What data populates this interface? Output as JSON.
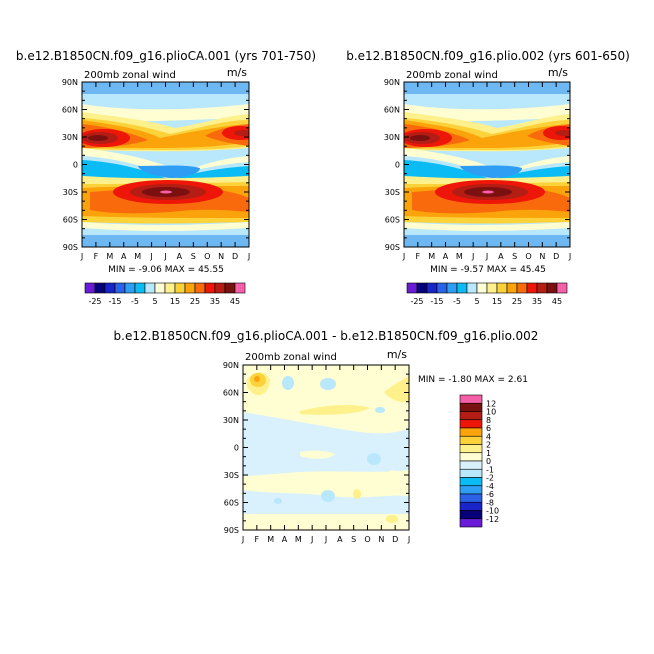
{
  "chart_data": [
    {
      "type": "heatmap",
      "title": "b.e12.B1850CN.f09_g16.plioCA.001 (yrs 701-750)",
      "subtitle_left": "200mb zonal wind",
      "subtitle_right": "m/s",
      "x_ticks": [
        "J",
        "F",
        "M",
        "A",
        "M",
        "J",
        "J",
        "A",
        "S",
        "O",
        "N",
        "D",
        "J"
      ],
      "y_ticks": [
        "90N",
        "60N",
        "30N",
        "0",
        "30S",
        "60S",
        "90S"
      ],
      "stats_text": "MIN = -9.06 MAX = 45.55",
      "min": -9.06,
      "max": 45.55,
      "colorbar_orientation": "horizontal",
      "colorbar_labels": [
        "-25",
        "-15",
        "-5",
        "5",
        "15",
        "25",
        "35",
        "45"
      ],
      "levels": [
        -25,
        -20,
        -15,
        -10,
        -5,
        0,
        5,
        10,
        15,
        20,
        25,
        30,
        35,
        40,
        45
      ],
      "colors": [
        "#6a1bd8",
        "#06007a",
        "#1a25c9",
        "#2a62e8",
        "#2d9ef3",
        "#0bbcf4",
        "#b9e7fb",
        "#fffdd2",
        "#fef08a",
        "#fcd23a",
        "#fba30b",
        "#f86a0c",
        "#ee1509",
        "#b41d14",
        "#7a1010",
        "#f55fa8"
      ]
    },
    {
      "type": "heatmap",
      "title": "b.e12.B1850CN.f09_g16.plio.002 (yrs 601-650)",
      "subtitle_left": "200mb zonal wind",
      "subtitle_right": "m/s",
      "x_ticks": [
        "J",
        "F",
        "M",
        "A",
        "M",
        "J",
        "J",
        "A",
        "S",
        "O",
        "N",
        "D",
        "J"
      ],
      "y_ticks": [
        "90N",
        "60N",
        "30N",
        "0",
        "30S",
        "60S",
        "90S"
      ],
      "stats_text": "MIN = -9.57 MAX = 45.45",
      "min": -9.57,
      "max": 45.45,
      "colorbar_orientation": "horizontal",
      "colorbar_labels": [
        "-25",
        "-15",
        "-5",
        "5",
        "15",
        "25",
        "35",
        "45"
      ],
      "levels": [
        -25,
        -20,
        -15,
        -10,
        -5,
        0,
        5,
        10,
        15,
        20,
        25,
        30,
        35,
        40,
        45
      ],
      "colors": [
        "#6a1bd8",
        "#06007a",
        "#1a25c9",
        "#2a62e8",
        "#2d9ef3",
        "#0bbcf4",
        "#b9e7fb",
        "#fffdd2",
        "#fef08a",
        "#fcd23a",
        "#fba30b",
        "#f86a0c",
        "#ee1509",
        "#b41d14",
        "#7a1010",
        "#f55fa8"
      ]
    },
    {
      "type": "heatmap",
      "title": "b.e12.B1850CN.f09_g16.plioCA.001 - b.e12.B1850CN.f09_g16.plio.002",
      "subtitle_left": "200mb zonal wind",
      "subtitle_right": "m/s",
      "x_ticks": [
        "J",
        "F",
        "M",
        "A",
        "M",
        "J",
        "J",
        "A",
        "S",
        "O",
        "N",
        "D",
        "J"
      ],
      "y_ticks": [
        "90N",
        "60N",
        "30N",
        "0",
        "30S",
        "60S",
        "90S"
      ],
      "stats_text": "MIN = -1.80 MAX = 2.61",
      "min": -1.8,
      "max": 2.61,
      "colorbar_orientation": "vertical",
      "colorbar_labels": [
        "12",
        "10",
        "8",
        "6",
        "4",
        "2",
        "1",
        "0",
        "-1",
        "-2",
        "-4",
        "-6",
        "-8",
        "-10",
        "-12"
      ],
      "levels": [
        -12,
        -10,
        -8,
        -6,
        -4,
        -2,
        -1,
        0,
        1,
        2,
        4,
        6,
        8,
        10,
        12
      ],
      "colors": [
        "#6a1bd8",
        "#06007a",
        "#1a25c9",
        "#2a62e8",
        "#2d9ef3",
        "#0bbcf4",
        "#b9e7fb",
        "#d8f1fc",
        "#fffdd2",
        "#fef08a",
        "#fcd23a",
        "#fba30b",
        "#ee1509",
        "#b41d14",
        "#7a1010",
        "#f55fa8"
      ]
    }
  ]
}
